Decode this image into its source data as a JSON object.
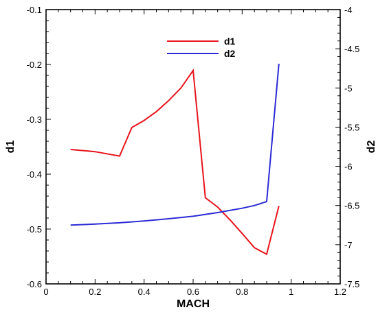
{
  "chart_data": {
    "type": "line",
    "title": "",
    "xlabel": "MACH",
    "ylabel_left": "d1",
    "ylabel_right": "d2",
    "xlim": [
      0,
      1.2
    ],
    "x_ticks": [
      "0",
      "0.2",
      "0.4",
      "0.6",
      "0.8",
      "1",
      "1.2"
    ],
    "ylim_left": [
      -0.6,
      -0.1
    ],
    "y_left_ticks": [
      "-0.6",
      "-0.5",
      "-0.4",
      "-0.3",
      "-0.2",
      "-0.1"
    ],
    "ylim_right": [
      -7.5,
      -4
    ],
    "y_right_ticks": [
      "-7.5",
      "-7",
      "-6.5",
      "-6",
      "-5.5",
      "-5",
      "-4.5",
      "-4"
    ],
    "grid": false,
    "legend_position": "top-center",
    "colors": {
      "d1": "#e8141b",
      "d2": "#2b2bd6"
    },
    "series": [
      {
        "name": "d1",
        "axis": "left",
        "x": [
          0.1,
          0.2,
          0.3,
          0.35,
          0.4,
          0.45,
          0.5,
          0.55,
          0.6,
          0.65,
          0.7,
          0.75,
          0.8,
          0.85,
          0.9,
          0.95
        ],
        "y": [
          -0.355,
          -0.359,
          -0.367,
          -0.315,
          -0.302,
          -0.286,
          -0.266,
          -0.243,
          -0.211,
          -0.443,
          -0.46,
          -0.483,
          -0.508,
          -0.534,
          -0.546,
          -0.458
        ]
      },
      {
        "name": "d2",
        "axis": "right",
        "x": [
          0.1,
          0.2,
          0.3,
          0.4,
          0.5,
          0.6,
          0.7,
          0.8,
          0.85,
          0.9,
          0.95
        ],
        "y": [
          -6.75,
          -6.737,
          -6.72,
          -6.697,
          -6.669,
          -6.637,
          -6.59,
          -6.535,
          -6.5,
          -6.45,
          -4.69
        ]
      }
    ]
  }
}
